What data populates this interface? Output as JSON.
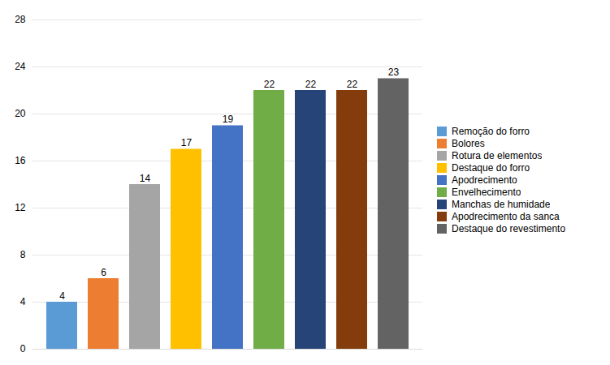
{
  "chart_data": {
    "type": "bar",
    "categories": [
      "Remoção do forro",
      "Bolores",
      "Rotura de elementos",
      "Destaque do forro",
      "Apodrecimento",
      "Envelhecimento",
      "Manchas de humidade",
      "Apodrecimento da sanca",
      "Destaque do revestimento"
    ],
    "values": [
      4,
      6,
      14,
      17,
      19,
      22,
      22,
      22,
      23
    ],
    "colors": [
      "#5B9BD5",
      "#ED7D31",
      "#A5A5A5",
      "#FFC000",
      "#4472C4",
      "#70AD47",
      "#264478",
      "#843C0C",
      "#636363"
    ],
    "ylim": [
      0,
      28
    ],
    "yticks": [
      0,
      4,
      8,
      12,
      16,
      20,
      24,
      28
    ],
    "grid": true,
    "data_labels": true,
    "tick_labels": "y",
    "legend": "right"
  }
}
